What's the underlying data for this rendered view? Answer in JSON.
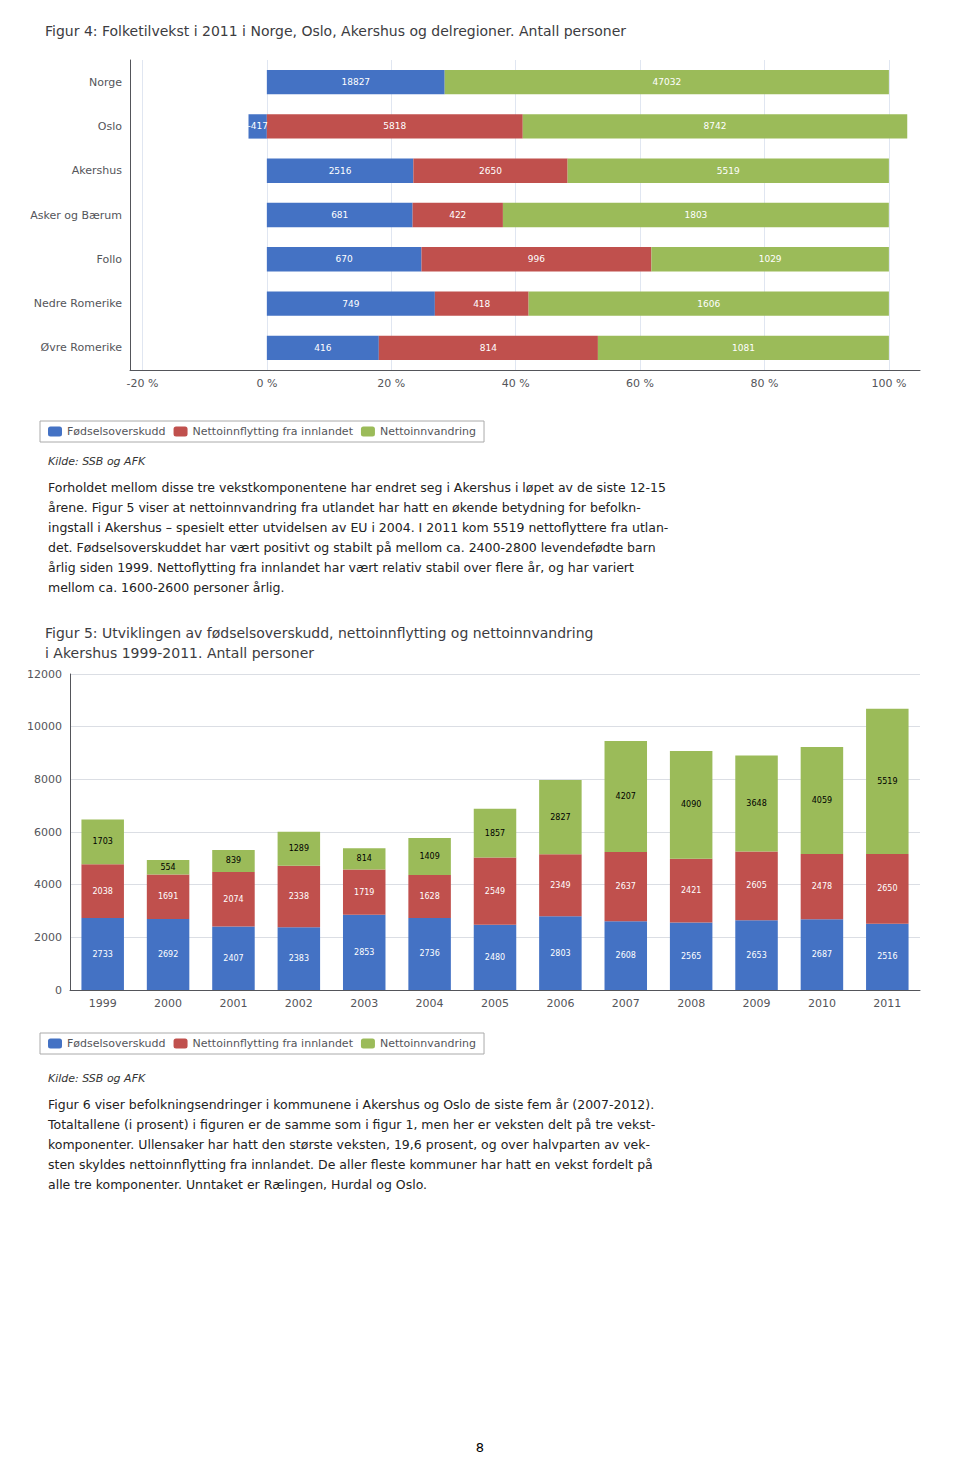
{
  "chart_data": [
    {
      "type": "bar",
      "orientation": "horizontal",
      "stacked": true,
      "title": "Figur 4: Folketilvekst i 2011 i Norge, Oslo, Akershus og delregioner. Antall personer",
      "categories": [
        "Norge",
        "Oslo",
        "Akershus",
        "Asker og Bærum",
        "Follo",
        "Nedre Romerike",
        "Øvre Romerike"
      ],
      "series": [
        {
          "name": "Fødselsoverskudd",
          "color": "#4472C4",
          "values": [
            28.59,
            -2.95,
            23.55,
            23.43,
            24.86,
            27.01,
            18.0
          ],
          "counts": [
            18827,
            -417,
            2516,
            681,
            670,
            749,
            416
          ]
        },
        {
          "name": "Nettoinnflytting fra innlandet",
          "color": "#C0504D",
          "values": [
            0,
            41.14,
            24.8,
            14.52,
            36.96,
            15.07,
            35.22
          ],
          "counts": [
            null,
            5818,
            2650,
            422,
            996,
            418,
            814
          ]
        },
        {
          "name": "Nettoinnvandring",
          "color": "#9BBB59",
          "values": [
            71.41,
            61.81,
            51.65,
            62.04,
            38.18,
            57.92,
            46.78
          ],
          "counts": [
            47032,
            8742,
            5519,
            1803,
            1029,
            1606,
            1081
          ]
        }
      ],
      "xlim": [
        -22,
        105
      ],
      "xticks": [
        {
          "value": -20,
          "label": "-20 %"
        },
        {
          "value": 0,
          "label": "0 %"
        },
        {
          "value": 20,
          "label": "20 %"
        },
        {
          "value": 40,
          "label": "40 %"
        },
        {
          "value": 60,
          "label": "60 %"
        },
        {
          "value": 80,
          "label": "80 %"
        },
        {
          "value": 100,
          "label": "100 %"
        }
      ],
      "grid": true,
      "legend": "lower left",
      "data_labels": true,
      "annotations": [
        "Kilde: SSB og AFK",
        "Forholdet mellom disse tre vekstkomponentene har endret seg i Akershus i løpet av de siste 12-15\nårene. Figur 5 viser at nettoinnvandring fra utlandet har hatt en økende betydning for befolkn-\ningstall i Akershus – spesielt etter utvidelsen av EU i 2004. I 2011 kom 5519 nettoflyttere fra utlan-\ndet. Fødselsoverskuddet har vært positivt og stabilt på mellom ca. 2400-2800 levendefødte barn\nårlig siden 1999. Nettoflytting fra innlandet har vært relativ stabil over flere år, og har variert\nmellom ca. 1600-2600 personer årlig."
      ]
    },
    {
      "type": "bar",
      "stacked": true,
      "title": "Figur 5: Utviklingen av fødselsoverskudd, nettoinnflytting og nettoinnvandring\ni Akershus 1999-2011. Antall personer",
      "categories": [
        "1999",
        "2000",
        "2001",
        "2002",
        "2003",
        "2004",
        "2005",
        "2006",
        "2007",
        "2008",
        "2009",
        "2010",
        "2011"
      ],
      "series": [
        {
          "name": "Fødselsoverskudd",
          "color": "#4472C4",
          "values": [
            2733,
            2692,
            2407,
            2383,
            2853,
            2736,
            2480,
            2803,
            2608,
            2565,
            2653,
            2687,
            2516
          ]
        },
        {
          "name": "Nettoinnflytting fra innlandet",
          "color": "#C0504D",
          "values": [
            2038,
            1691,
            2074,
            2338,
            1719,
            1628,
            2549,
            2349,
            2637,
            2421,
            2605,
            2478,
            2650
          ]
        },
        {
          "name": "Nettoinnvandring",
          "color": "#9BBB59",
          "values": [
            1703,
            554,
            839,
            1289,
            814,
            1409,
            1857,
            2827,
            4207,
            4090,
            3648,
            4059,
            5519
          ]
        }
      ],
      "ylim": [
        0,
        12000
      ],
      "yticks": [
        0,
        2000,
        4000,
        6000,
        8000,
        10000,
        12000
      ],
      "grid": true,
      "legend": "lower left",
      "data_labels": true,
      "annotations": [
        "Kilde: SSB og AFK",
        "Figur 6 viser befolkningsendringer i kommunene i Akershus og Oslo de siste fem år (2007-2012).\nTotaltallene (i prosent) i figuren er de samme som i figur 1, men her er veksten delt på tre vekst-\nkomponenter. Ullensaker har hatt den største veksten, 19,6 prosent, og over halvparten av vek-\nsten skyldes nettoinnflytting fra innlandet. De aller fleste kommuner har hatt en vekst fordelt på\nalle tre komponenter. Unntaket er Rælingen, Hurdal og Oslo.",
        "8"
      ]
    }
  ]
}
